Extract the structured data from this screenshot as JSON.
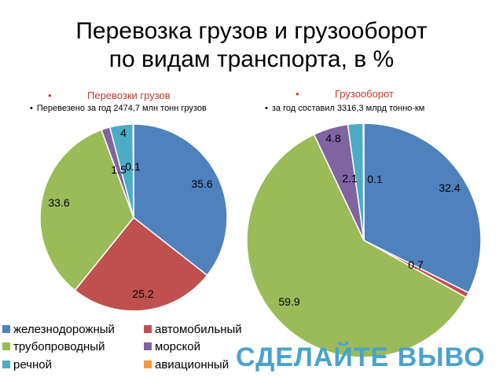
{
  "title_line1": "Перевозка грузов и грузооборот",
  "title_line2": "по видам транспорта, в %",
  "colors": {
    "железнодорожный": "#4f81bd",
    "автомобильный": "#c0504d",
    "трубопроводный": "#9bbb59",
    "морской": "#8064a2",
    "речной": "#4bacc6",
    "авиационный": "#f79646"
  },
  "chart_data": [
    {
      "type": "pie",
      "title": "Перевозки грузов",
      "subtitle": "Перевезено за год 2474,7 млн тонн грузов",
      "categories": [
        "железнодорожный",
        "автомобильный",
        "трубопроводный",
        "морской",
        "речной",
        "авиационный"
      ],
      "values": [
        35.6,
        25.2,
        33.6,
        1.5,
        4,
        0.1
      ],
      "labels": [
        "35.6",
        "25.2",
        "33.6",
        "1.5",
        "4",
        "0.1"
      ]
    },
    {
      "type": "pie",
      "title": "Грузооборот",
      "subtitle": "за год составил 3316,3 млрд тонно-км",
      "categories": [
        "железнодорожный",
        "автомобильный",
        "трубопроводный",
        "морской",
        "речной",
        "авиационный"
      ],
      "values": [
        32.4,
        0.7,
        59.9,
        4.8,
        2.1,
        0.1
      ],
      "labels": [
        "32.4",
        "0.7",
        "59.9",
        "4.8",
        "2.1",
        "0.1"
      ]
    }
  ],
  "legend": [
    {
      "name": "железнодорожный"
    },
    {
      "name": "автомобильный"
    },
    {
      "name": "трубопроводный"
    },
    {
      "name": "морской"
    },
    {
      "name": "речной"
    },
    {
      "name": "авиационный"
    }
  ],
  "callout": "СДЕЛАЙТЕ ВЫВО",
  "bullet_symbol": "•"
}
